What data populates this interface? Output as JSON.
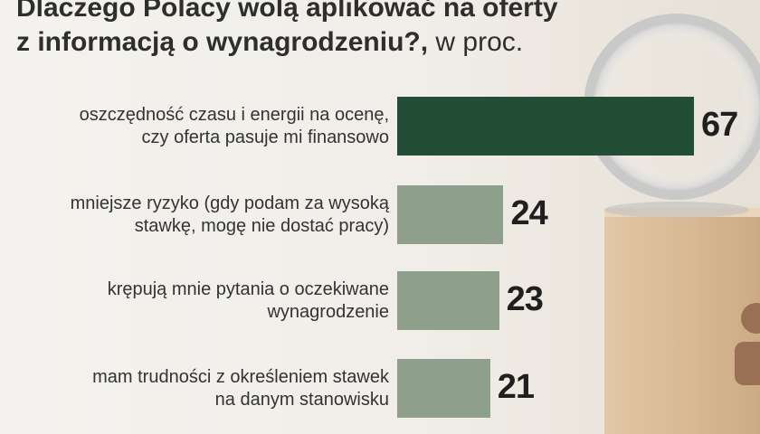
{
  "title": {
    "line1": "Dlaczego Polacy wolą aplikować na oferty",
    "line2": "z informacją o wynagrodzeniu?,",
    "unit": "w proc."
  },
  "colors": {
    "highlight_bar": "#214e35",
    "bar": "#8e9f8c"
  },
  "chart_data": {
    "type": "bar",
    "orientation": "horizontal",
    "categories": [
      [
        "oszczędność czasu i energii na ocenę,",
        "czy oferta pasuje mi finansowo"
      ],
      [
        "mniejsze ryzyko (gdy podam za wysoką",
        "stawkę, mogę nie dostać pracy)"
      ],
      [
        "krępują mnie pytania o oczekiwane",
        "wynagrodzenie"
      ],
      [
        "mam trudności z określeniem stawek",
        "na danym stanowisku"
      ]
    ],
    "values": [
      67,
      24,
      23,
      21
    ],
    "xlim": [
      0,
      67
    ]
  }
}
